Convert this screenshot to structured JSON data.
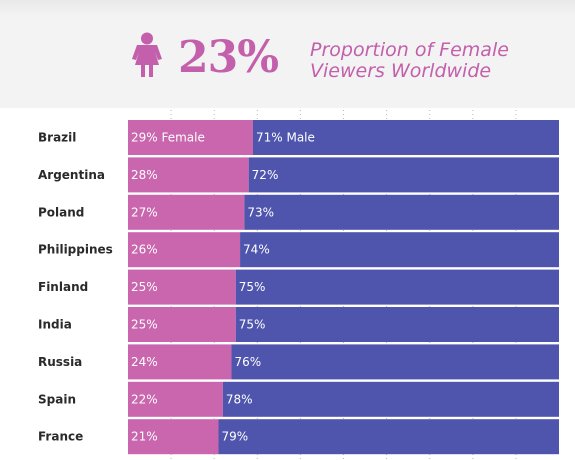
{
  "header": {
    "headline_value": "23%",
    "headline_text_line1": "Proportion of Female",
    "headline_text_line2": "Viewers Worldwide",
    "icon": "female-person-icon",
    "accent_color": "#c35fab"
  },
  "chart_data": {
    "type": "bar",
    "stacked": true,
    "orientation": "horizontal",
    "categories": [
      "Brazil",
      "Argentina",
      "Poland",
      "Philippines",
      "Finland",
      "India",
      "Russia",
      "Spain",
      "France"
    ],
    "series": [
      {
        "name": "Female",
        "color": "#c966ae",
        "values": [
          29,
          28,
          27,
          26,
          25,
          25,
          24,
          22,
          21
        ],
        "labels": [
          "29% Female",
          "28%",
          "27%",
          "26%",
          "25%",
          "25%",
          "24%",
          "22%",
          "21%"
        ]
      },
      {
        "name": "Male",
        "color": "#4f55ad",
        "values": [
          71,
          72,
          73,
          74,
          75,
          75,
          76,
          78,
          79
        ],
        "labels": [
          "71% Male",
          "72%",
          "73%",
          "74%",
          "75%",
          "75%",
          "76%",
          "78%",
          "79%"
        ]
      }
    ],
    "xlim": [
      0,
      100
    ],
    "grid": true
  }
}
